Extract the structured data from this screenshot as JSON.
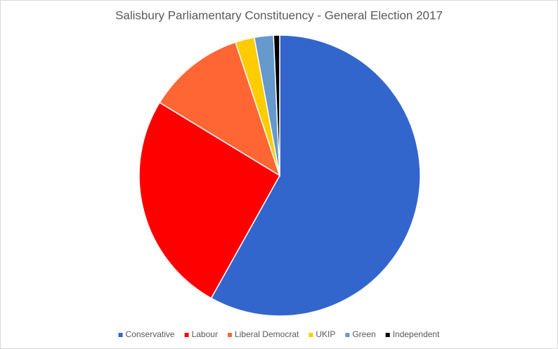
{
  "chart_data": {
    "type": "pie",
    "title": "Salisbury Parliamentary Constituency - General Election 2017",
    "categories": [
      "Conservative",
      "Labour",
      "Liberal Democrat",
      "UKIP",
      "Green",
      "Independent"
    ],
    "values": [
      58.1,
      25.6,
      11.2,
      2.2,
      2.2,
      0.7
    ],
    "colors": [
      "#3366cc",
      "#ff0000",
      "#ff6633",
      "#ffcc00",
      "#6699cc",
      "#000000"
    ],
    "legend": "bottom"
  }
}
